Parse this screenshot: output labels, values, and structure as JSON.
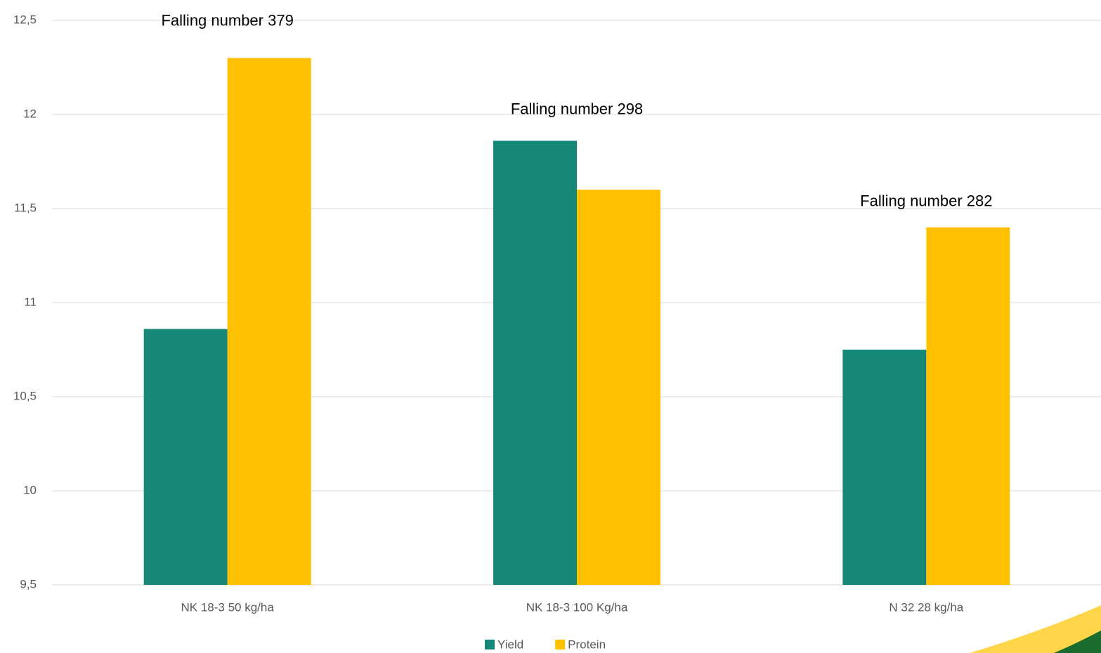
{
  "chart_data": {
    "type": "bar",
    "categories": [
      "NK 18-3 50 kg/ha",
      "NK 18-3 100 Kg/ha",
      "N 32 28 kg/ha"
    ],
    "series": [
      {
        "name": "Yield",
        "color": "#158878",
        "values": [
          10.86,
          11.86,
          10.75
        ]
      },
      {
        "name": "Protein",
        "color": "#ffc000",
        "values": [
          12.3,
          11.6,
          11.4
        ]
      }
    ],
    "annotations": [
      "Falling number 379",
      "Falling number 298",
      "Falling number 282"
    ],
    "ylim": [
      9.5,
      12.5
    ],
    "yticks": [
      {
        "value": 9.5,
        "label": "9,5"
      },
      10,
      {
        "value": 10.5,
        "label": "10,5"
      },
      11,
      {
        "value": 11.5,
        "label": "11,5"
      },
      12,
      {
        "value": 12.5,
        "label": "12,5"
      }
    ],
    "grid": true,
    "legend": "bottom"
  }
}
